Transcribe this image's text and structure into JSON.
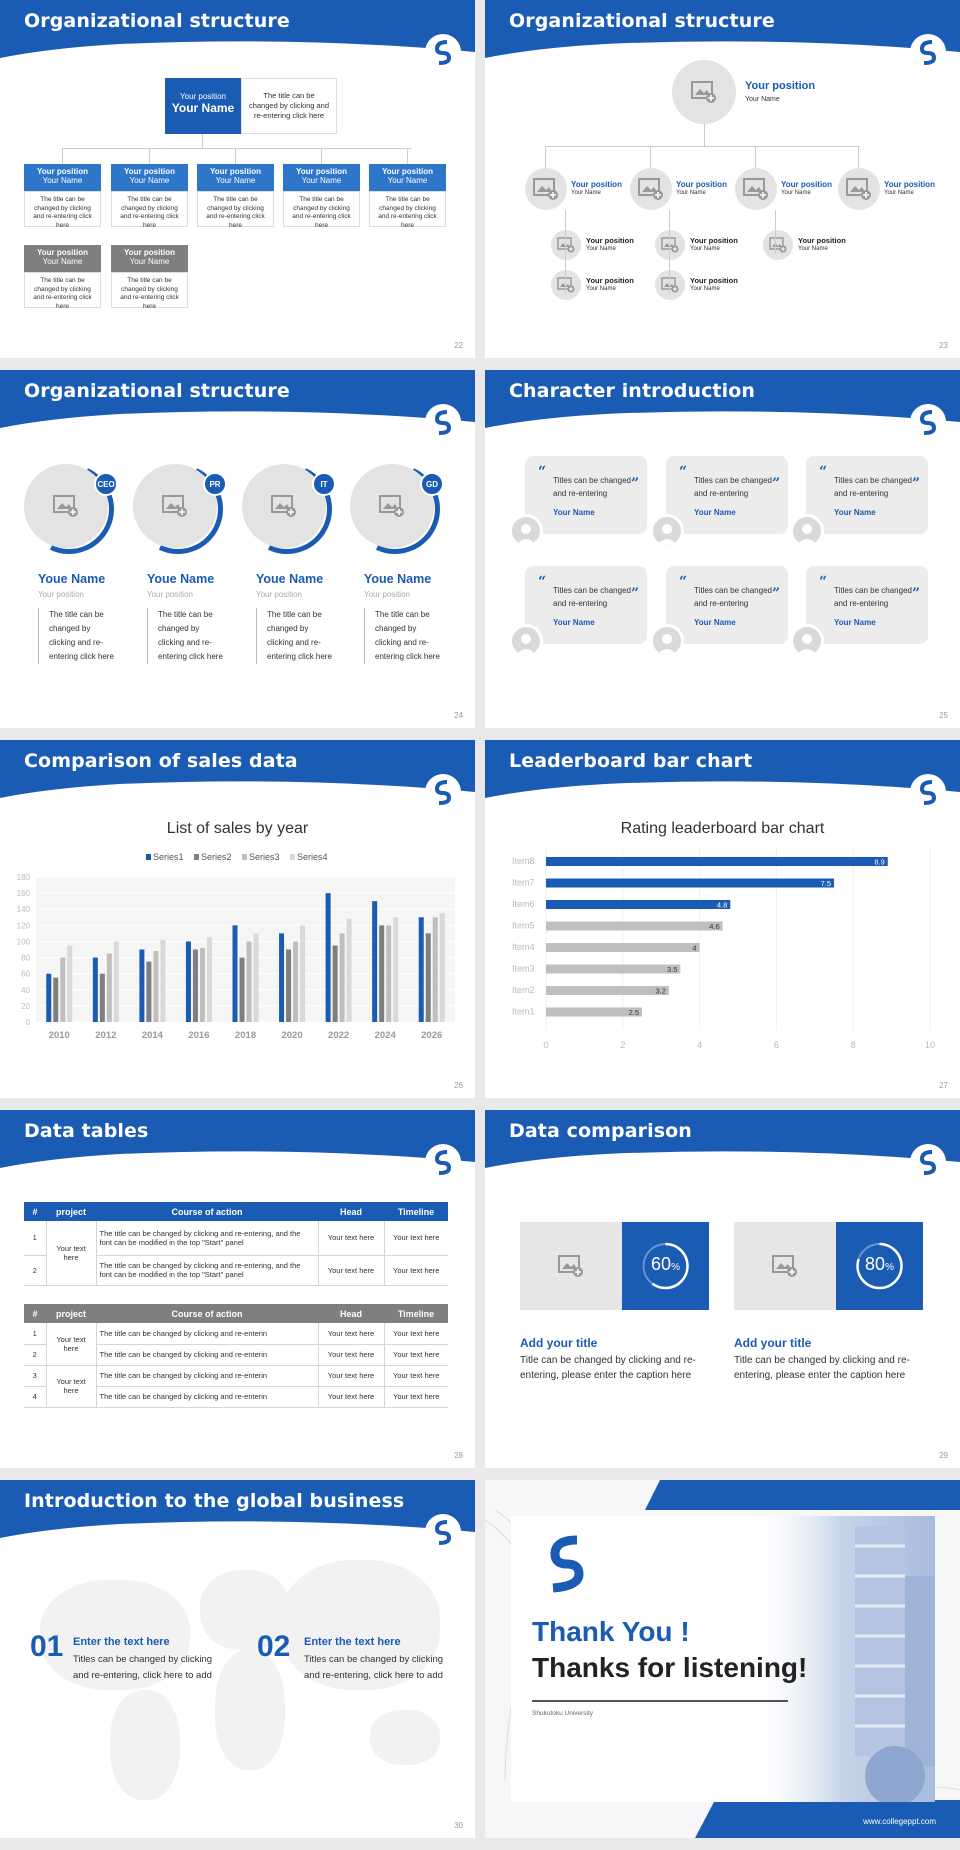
{
  "colors": {
    "primary": "#1a5bb3",
    "gray_box": "#7f7f7f",
    "light": "#e6e6e6"
  },
  "header_logo_icon": "swirl-logo-icon",
  "slide22": {
    "title": "Organizational structure",
    "page": "22",
    "top": {
      "position": "Your position",
      "name": "Your Name",
      "text": "The title can be changed by clicking and re-entering click here"
    },
    "row1": [
      {
        "position": "Your position",
        "name": "Your Name",
        "text": "The title can be changed by clicking and re-entering click here"
      },
      {
        "position": "Your position",
        "name": "Your Name",
        "text": "The title can be changed by clicking and re-entering click here"
      },
      {
        "position": "Your position",
        "name": "Your Name",
        "text": "The title can be changed by clicking and re-entering click here"
      },
      {
        "position": "Your position",
        "name": "Your Name",
        "text": "The title can be changed by clicking and re-entering click here"
      },
      {
        "position": "Your position",
        "name": "Your Name",
        "text": "The title can be changed by clicking and re-entering click here"
      }
    ],
    "row2": [
      {
        "position": "Your position",
        "name": "Your Name",
        "text": "The title can be changed by clicking and re-entering click here"
      },
      {
        "position": "Your position",
        "name": "Your Name",
        "text": "The title can be changed by clicking and re-entering click here"
      }
    ]
  },
  "slide23": {
    "title": "Organizational structure",
    "page": "23",
    "top": {
      "position": "Your position",
      "name": "Your Name"
    },
    "row1": [
      {
        "position": "Your position",
        "name": "Your Name"
      },
      {
        "position": "Your position",
        "name": "Your Name"
      },
      {
        "position": "Your position",
        "name": "Your Name"
      },
      {
        "position": "Your position",
        "name": "Your Name"
      }
    ],
    "subs": [
      {
        "position": "Your position",
        "name": "Your Name"
      },
      {
        "position": "Your position",
        "name": "Your Name"
      },
      {
        "position": "Your position",
        "name": "Your Name"
      },
      {
        "position": "Your position",
        "name": "Your Name"
      },
      {
        "position": "Your position",
        "name": "Your Name"
      },
      {
        "position": "Your position",
        "name": "Your Name"
      }
    ]
  },
  "slide24": {
    "title": "Organizational structure",
    "page": "24",
    "people": [
      {
        "badge": "CEO",
        "name": "Youe Name",
        "position": "Your position",
        "text": "The title can be changed by clicking and re-entering click here"
      },
      {
        "badge": "PR",
        "name": "Youe Name",
        "position": "Your position",
        "text": "The title can be changed by clicking and re-entering click here"
      },
      {
        "badge": "IT",
        "name": "Youe Name",
        "position": "Your position",
        "text": "The title can be changed by clicking and re-entering click here"
      },
      {
        "badge": "GD",
        "name": "Youe Name",
        "position": "Your position",
        "text": "The title can be changed by clicking and re-entering click here"
      }
    ]
  },
  "slide25": {
    "title": "Character introduction",
    "page": "25",
    "cards": [
      {
        "text": "Titles can be changed and re-entering",
        "name": "Your Name"
      },
      {
        "text": "Titles can be changed and re-entering",
        "name": "Your Name"
      },
      {
        "text": "Titles can be changed and re-entering",
        "name": "Your Name"
      },
      {
        "text": "Titles can be changed and re-entering",
        "name": "Your Name"
      },
      {
        "text": "Titles can be changed and re-entering",
        "name": "Your Name"
      },
      {
        "text": "Titles can be changed and re-entering",
        "name": "Your Name"
      }
    ],
    "open_quote": "“",
    "close_quote": "”"
  },
  "slide26": {
    "title": "Comparison of sales data",
    "page": "26"
  },
  "slide27": {
    "title": "Leaderboard bar chart",
    "page": "27"
  },
  "chart_data": [
    {
      "type": "bar",
      "title": "List of sales by year",
      "categories": [
        "2010",
        "2012",
        "2014",
        "2016",
        "2018",
        "2020",
        "2022",
        "2024",
        "2026"
      ],
      "series": [
        {
          "name": "Series1",
          "color": "#1a5bb3",
          "values": [
            60,
            80,
            90,
            100,
            120,
            110,
            160,
            150,
            130
          ]
        },
        {
          "name": "Series2",
          "color": "#7f7f7f",
          "values": [
            55,
            60,
            75,
            90,
            80,
            90,
            95,
            120,
            110
          ]
        },
        {
          "name": "Series3",
          "color": "#bfbfbf",
          "values": [
            80,
            85,
            88,
            92,
            100,
            100,
            110,
            120,
            130
          ]
        },
        {
          "name": "Series4",
          "color": "#d9d9d9",
          "values": [
            95,
            100,
            102,
            105,
            110,
            120,
            128,
            130,
            135
          ]
        }
      ],
      "ylim": [
        0,
        180
      ],
      "yticks": [
        "0",
        "20",
        "40",
        "60",
        "80",
        "100",
        "120",
        "140",
        "160",
        "180"
      ],
      "legend": "top"
    },
    {
      "type": "bar",
      "orientation": "horizontal",
      "title": "Rating leaderboard bar chart",
      "categories": [
        "Item8",
        "Item7",
        "Item6",
        "Item5",
        "Item4",
        "Item3",
        "Item2",
        "Item1"
      ],
      "values": [
        8.9,
        7.5,
        4.8,
        4.6,
        4,
        3.5,
        3.2,
        2.5
      ],
      "value_labels": [
        "8.9",
        "7.5",
        "4.8",
        "4.6",
        "4",
        "3.5",
        "3.2",
        "2.5"
      ],
      "highlight_count": 3,
      "xlim": [
        0,
        10
      ],
      "xticks": [
        "0",
        "2",
        "4",
        "6",
        "8",
        "10"
      ]
    }
  ],
  "slide28": {
    "title": "Data tables",
    "page": "28",
    "table1": {
      "headers": [
        "#",
        "project",
        "Course of action",
        "Head",
        "Timeline"
      ],
      "project": "Your text here",
      "rows": [
        {
          "num": "1",
          "action": "The title can be changed by clicking and re-entering, and the font can be modified in the top \"Start\" panel",
          "head": "Your text here",
          "time": "Your text here"
        },
        {
          "num": "2",
          "action": "The title can be changed by clicking and re-entering, and the font can be modified in the top \"Start\" panel",
          "head": "Your text here",
          "time": "Your text here"
        }
      ]
    },
    "table2": {
      "headers": [
        "#",
        "project",
        "Course of action",
        "Head",
        "Timeline"
      ],
      "project_a": "Your text here",
      "project_b": "Your text here",
      "rows": [
        {
          "num": "1",
          "action": "The title can be changed by clicking and re-enterin",
          "head": "Your text here",
          "time": "Your text here"
        },
        {
          "num": "2",
          "action": "The title can be changed by clicking and re-enterin",
          "head": "Your text here",
          "time": "Your text here"
        },
        {
          "num": "3",
          "action": "The title can be changed by clicking and re-enterin",
          "head": "Your text here",
          "time": "Your text here"
        },
        {
          "num": "4",
          "action": "The title can be changed by clicking and re-enterin",
          "head": "Your text here",
          "time": "Your text here"
        }
      ]
    }
  },
  "slide29": {
    "title": "Data comparison",
    "page": "29",
    "items": [
      {
        "percent_value": 60,
        "percent": "60",
        "unit": "%",
        "heading": "Add your title",
        "text": "Title can be changed by clicking and re-entering, please enter the caption here"
      },
      {
        "percent_value": 80,
        "percent": "80",
        "unit": "%",
        "heading": "Add your title",
        "text": "Title can be changed by clicking and re-entering, please enter the caption here"
      }
    ]
  },
  "slide30": {
    "title": "Introduction to the global business",
    "page": "30",
    "items": [
      {
        "num": "01",
        "heading": "Enter the text here",
        "text": "Titles can be changed by clicking and re-entering, click here to add"
      },
      {
        "num": "02",
        "heading": "Enter the text here",
        "text": "Titles can be changed by clicking and re-entering, click here to add"
      }
    ]
  },
  "slide31": {
    "thank": "Thank You !",
    "listening": "Thanks for listening!",
    "university": "Shukutoku University",
    "url": "www.collegeppt.com"
  }
}
